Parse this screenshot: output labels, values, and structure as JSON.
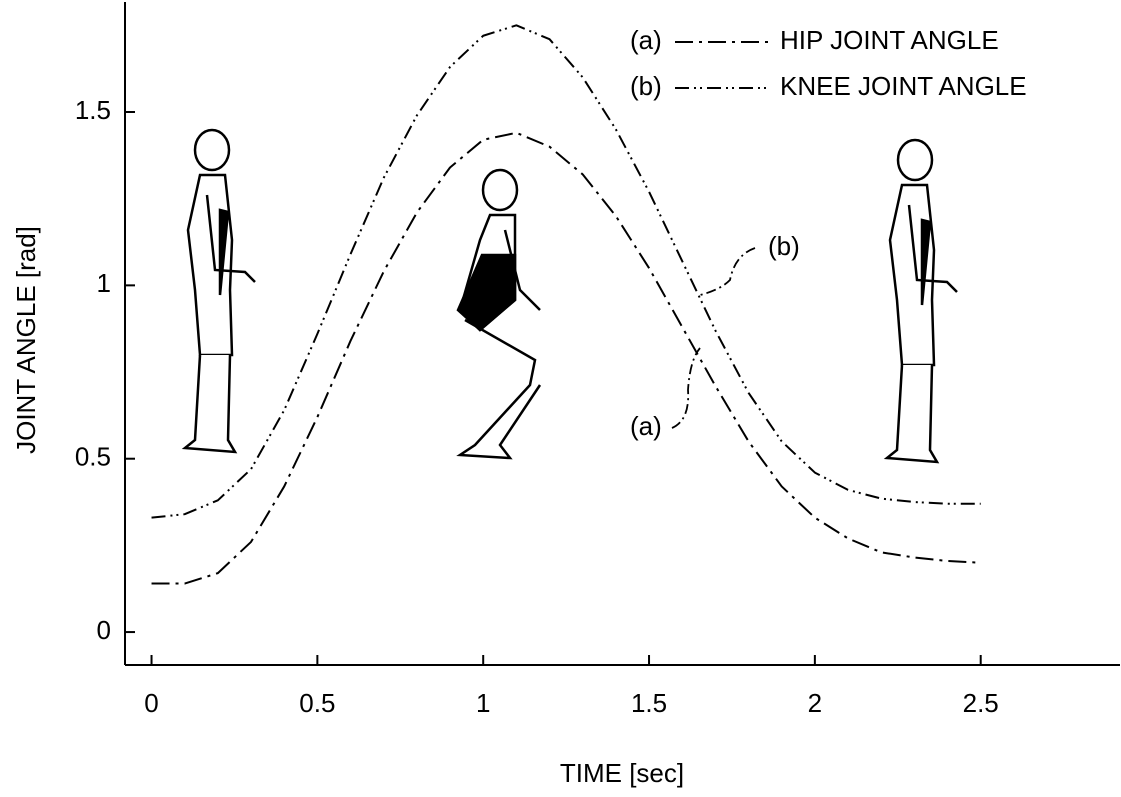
{
  "chart_data": {
    "type": "line",
    "x_label": "TIME [sec]",
    "y_label": "JOINT ANGLE [rad]",
    "x": [
      0,
      0.1,
      0.2,
      0.3,
      0.4,
      0.5,
      0.6,
      0.7,
      0.8,
      0.9,
      1.0,
      1.1,
      1.2,
      1.3,
      1.4,
      1.5,
      1.6,
      1.7,
      1.8,
      1.9,
      2.0,
      2.1,
      2.2,
      2.3,
      2.4,
      2.5
    ],
    "series": [
      {
        "tag": "(a)",
        "name": "HIP JOINT ANGLE",
        "color": "#000000",
        "dash": "18 6 3 6",
        "values": [
          0.14,
          0.14,
          0.17,
          0.26,
          0.42,
          0.62,
          0.84,
          1.04,
          1.21,
          1.34,
          1.42,
          1.44,
          1.4,
          1.32,
          1.2,
          1.05,
          0.88,
          0.71,
          0.55,
          0.42,
          0.33,
          0.27,
          0.23,
          0.215,
          0.205,
          0.2
        ]
      },
      {
        "tag": "(b)",
        "name": "KNEE JOINT ANGLE",
        "color": "#000000",
        "dash": "14 5 2 4 2 5",
        "values": [
          0.33,
          0.34,
          0.38,
          0.47,
          0.64,
          0.86,
          1.09,
          1.31,
          1.49,
          1.63,
          1.72,
          1.75,
          1.71,
          1.6,
          1.45,
          1.27,
          1.07,
          0.87,
          0.69,
          0.55,
          0.46,
          0.41,
          0.385,
          0.375,
          0.37,
          0.37
        ]
      }
    ],
    "xlim": [
      -0.08,
      2.92
    ],
    "ylim": [
      -0.095,
      1.8
    ],
    "xticks": [
      0,
      0.5,
      1,
      1.5,
      2,
      2.5
    ],
    "yticks": [
      0,
      0.5,
      1,
      1.5
    ],
    "legend": "upper right"
  }
}
